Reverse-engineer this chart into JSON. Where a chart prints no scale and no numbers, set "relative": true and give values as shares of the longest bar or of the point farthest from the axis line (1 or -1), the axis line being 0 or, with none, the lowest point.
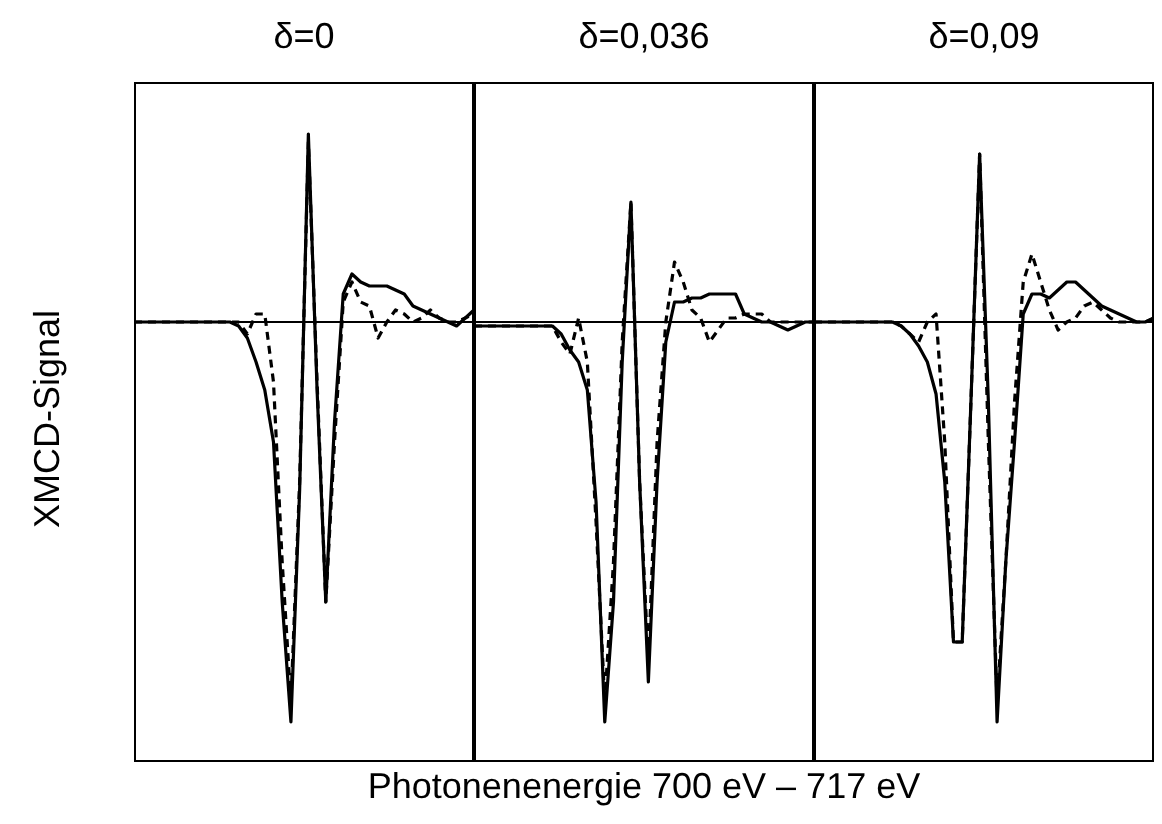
{
  "chart_data": [
    {
      "type": "line",
      "title": "δ=0",
      "ylabel": "XMCD-Signal",
      "relative": true,
      "categories": [
        null,
        null,
        null,
        null,
        null,
        null,
        null,
        null,
        null,
        null,
        null,
        null,
        null,
        null,
        null,
        null,
        null,
        null,
        null,
        null,
        null,
        null,
        null,
        null,
        null,
        null,
        null,
        null,
        null,
        null,
        null,
        null,
        null,
        null,
        null,
        null,
        null,
        null,
        null,
        null
      ],
      "series": [
        {
          "color": "#000000",
          "line_style": "solid",
          "values": [
            0,
            0,
            0,
            0,
            0,
            0,
            0,
            0,
            0,
            0,
            0,
            0,
            -0.01,
            -0.04,
            -0.1,
            -0.17,
            -0.3,
            -0.7,
            -1.0,
            -0.42,
            0.47,
            -0.17,
            -0.7,
            -0.25,
            0.07,
            0.12,
            0.1,
            0.09,
            0.09,
            0.09,
            0.08,
            0.07,
            0.04,
            0.03,
            0.02,
            0.01,
            0,
            -0.01,
            0.01,
            0.03
          ]
        },
        {
          "color": "#000000",
          "line_style": "dashed",
          "values": [
            0,
            0,
            0,
            0,
            0,
            0,
            0,
            0,
            0,
            0,
            0,
            0,
            0,
            -0.03,
            0.02,
            0.02,
            -0.15,
            -0.6,
            -0.95,
            -0.4,
            0.45,
            -0.15,
            -0.7,
            -0.3,
            0.05,
            0.1,
            0.05,
            0.04,
            -0.04,
            0,
            0.03,
            0.02,
            0,
            0.01,
            0.03,
            0.01,
            0,
            0,
            0.01,
            0.02
          ]
        }
      ]
    },
    {
      "type": "line",
      "title": "δ=0,036",
      "xlabel": "Photonenenergie 700 eV – 717 eV",
      "relative": true,
      "categories": [
        null,
        null,
        null,
        null,
        null,
        null,
        null,
        null,
        null,
        null,
        null,
        null,
        null,
        null,
        null,
        null,
        null,
        null,
        null,
        null,
        null,
        null,
        null,
        null,
        null,
        null,
        null,
        null,
        null,
        null,
        null,
        null,
        null,
        null,
        null,
        null,
        null,
        null,
        null,
        null
      ],
      "series": [
        {
          "color": "#000000",
          "line_style": "solid",
          "values": [
            -0.01,
            -0.01,
            -0.01,
            -0.01,
            -0.01,
            -0.01,
            -0.01,
            -0.01,
            -0.01,
            -0.01,
            -0.03,
            -0.07,
            -0.1,
            -0.17,
            -0.45,
            -1.0,
            -0.7,
            -0.1,
            0.3,
            -0.4,
            -0.9,
            -0.4,
            -0.05,
            0.05,
            0.05,
            0.06,
            0.06,
            0.07,
            0.07,
            0.07,
            0.07,
            0.02,
            0.01,
            0,
            0,
            -0.01,
            -0.02,
            -0.01,
            0,
            0
          ]
        },
        {
          "color": "#000000",
          "line_style": "dashed",
          "values": [
            -0.01,
            -0.01,
            -0.01,
            -0.01,
            -0.01,
            -0.01,
            -0.01,
            -0.01,
            -0.01,
            -0.01,
            -0.05,
            -0.08,
            0.01,
            -0.1,
            -0.5,
            -0.95,
            -0.6,
            -0.05,
            0.3,
            -0.4,
            -0.85,
            -0.3,
            0,
            0.15,
            0.1,
            0.03,
            0.01,
            -0.05,
            -0.02,
            0.01,
            0.01,
            0.02,
            0.02,
            0.02,
            0,
            0,
            0,
            0,
            0,
            0
          ]
        }
      ]
    },
    {
      "type": "line",
      "title": "δ=0,09",
      "relative": true,
      "categories": [
        null,
        null,
        null,
        null,
        null,
        null,
        null,
        null,
        null,
        null,
        null,
        null,
        null,
        null,
        null,
        null,
        null,
        null,
        null,
        null,
        null,
        null,
        null,
        null,
        null,
        null,
        null,
        null,
        null,
        null,
        null,
        null,
        null,
        null,
        null,
        null,
        null,
        null,
        null,
        null
      ],
      "series": [
        {
          "color": "#000000",
          "line_style": "solid",
          "values": [
            0,
            0,
            0,
            0,
            0,
            0,
            0,
            0,
            0,
            0,
            -0.01,
            -0.03,
            -0.06,
            -0.1,
            -0.18,
            -0.4,
            -0.8,
            -0.8,
            -0.2,
            0.42,
            -0.2,
            -1.0,
            -0.6,
            -0.3,
            0.02,
            0.07,
            0.07,
            0.06,
            0.08,
            0.1,
            0.1,
            0.08,
            0.06,
            0.04,
            0.03,
            0.02,
            0.01,
            0,
            0,
            0.01
          ]
        },
        {
          "color": "#000000",
          "line_style": "dashed",
          "values": [
            0,
            0,
            0,
            0,
            0,
            0,
            0,
            0,
            0,
            0,
            -0.01,
            -0.03,
            -0.05,
            0,
            0.02,
            -0.3,
            -0.8,
            -0.8,
            -0.2,
            0.42,
            -0.3,
            -0.95,
            -0.6,
            -0.2,
            0.1,
            0.17,
            0.1,
            0.03,
            -0.02,
            0,
            0.01,
            0.04,
            0.05,
            0.03,
            0.01,
            0,
            0,
            0,
            0,
            0.01
          ]
        }
      ]
    }
  ]
}
